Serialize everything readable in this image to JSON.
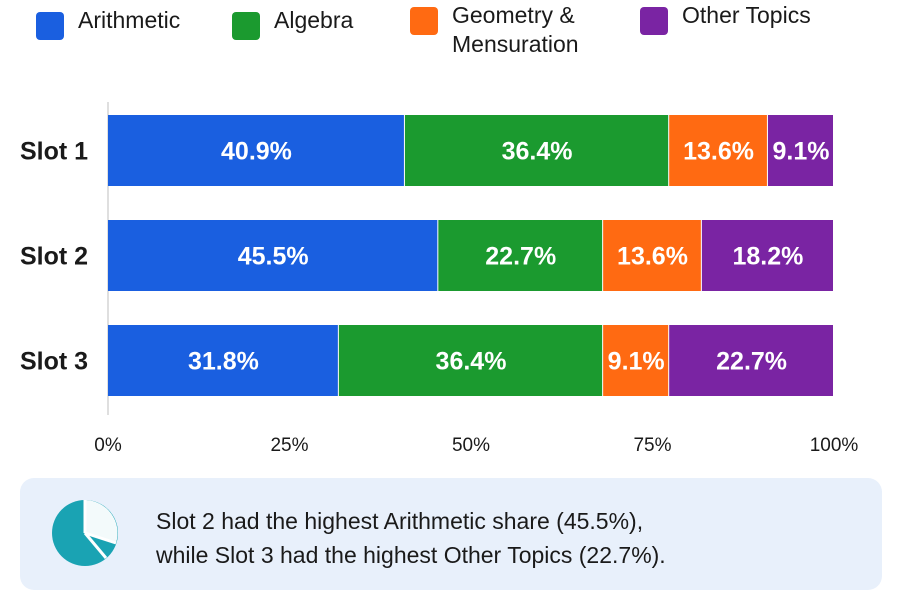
{
  "chart_data": {
    "type": "bar",
    "orientation": "horizontal",
    "stacked": true,
    "categories": [
      "Slot 1",
      "Slot 2",
      "Slot 3"
    ],
    "series": [
      {
        "name": "Arithmetic",
        "color": "#1a5fe0",
        "values": [
          40.9,
          45.5,
          31.8
        ],
        "labels": [
          "40.9%",
          "45.5%",
          "31.8%"
        ]
      },
      {
        "name": "Algebra",
        "color": "#1b9a2f",
        "values": [
          36.4,
          22.7,
          36.4
        ],
        "labels": [
          "36.4%",
          "22.7%",
          "36.4%"
        ]
      },
      {
        "name": "Geometry &\nMensuration",
        "color": "#ff6a12",
        "values": [
          13.6,
          13.6,
          9.1
        ],
        "labels": [
          "13.6%",
          "13.6%",
          "9.1%"
        ]
      },
      {
        "name": "Other Topics",
        "color": "#7a24a3",
        "values": [
          9.1,
          18.2,
          22.7
        ],
        "labels": [
          "9.1%",
          "18.2%",
          "22.7%"
        ]
      }
    ],
    "xlim": [
      0,
      100
    ],
    "xticks": [
      0,
      25,
      50,
      75,
      100
    ],
    "xtick_labels": [
      "0%",
      "25%",
      "50%",
      "75%",
      "100%"
    ],
    "legend_position": "top",
    "grid": false
  },
  "insight": {
    "line1": "Slot 2 had the highest Arithmetic share (45.5%),",
    "line2": "while Slot 3 had the highest Other Topics (22.7%).",
    "icon": "pie-chart-icon",
    "icon_color": "#1aa3b3",
    "background": "#e8f0fb"
  }
}
